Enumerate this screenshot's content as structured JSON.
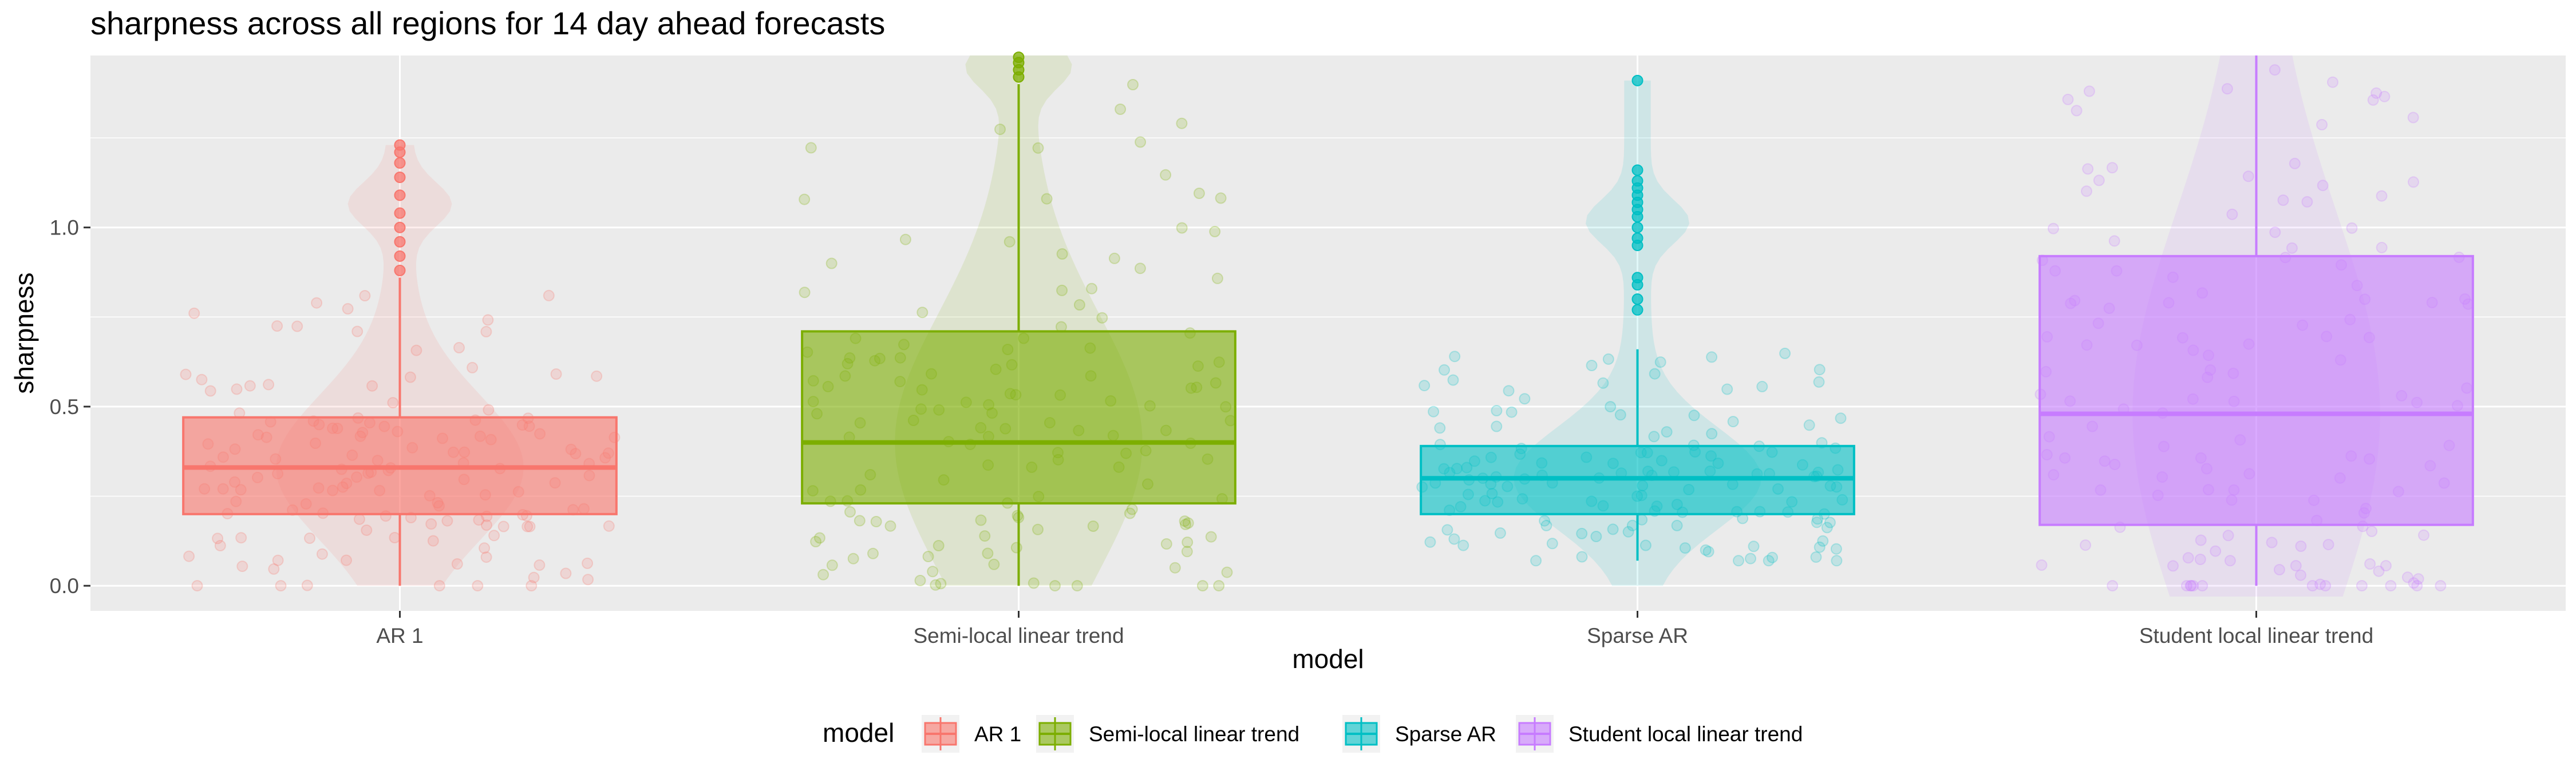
{
  "chart_data": {
    "type": "box",
    "title": "sharpness across all regions for 14 day ahead forecasts",
    "xlabel": "model",
    "ylabel": "sharpness",
    "ylim": [
      -0.07,
      1.48
    ],
    "yticks": [
      0.0,
      0.5,
      1.0
    ],
    "ytick_labels": [
      "0.0",
      "0.5",
      "1.0"
    ],
    "grid": true,
    "legend_position": "bottom",
    "legend_title": "model",
    "categories": [
      "AR 1",
      "Semi-local linear trend",
      "Sparse AR",
      "Student local linear trend"
    ],
    "series": [
      {
        "name": "AR 1",
        "color": "#F8766D",
        "q1": 0.2,
        "median": 0.33,
        "q3": 0.47,
        "whisker_low": 0.0,
        "whisker_high": 0.86,
        "outliers": [
          0.88,
          0.92,
          0.96,
          1.0,
          1.04,
          1.09,
          1.14,
          1.18,
          1.21,
          1.23
        ]
      },
      {
        "name": "Semi-local linear trend",
        "color": "#7CAE00",
        "q1": 0.23,
        "median": 0.4,
        "q3": 0.71,
        "whisker_low": 0.0,
        "whisker_high": 1.4,
        "outliers": [
          1.42,
          1.44,
          1.46,
          1.48
        ]
      },
      {
        "name": "Sparse AR",
        "color": "#00BFC4",
        "q1": 0.2,
        "median": 0.3,
        "q3": 0.39,
        "whisker_low": 0.07,
        "whisker_high": 0.66,
        "outliers": [
          0.77,
          0.8,
          0.84,
          0.86,
          0.95,
          0.97,
          1.0,
          1.03,
          1.05,
          1.07,
          1.09,
          1.11,
          1.13,
          1.16,
          1.41
        ]
      },
      {
        "name": "Student local linear trend",
        "color": "#C77CFF",
        "q1": 0.17,
        "median": 0.48,
        "q3": 0.92,
        "whisker_low": 0.0,
        "whisker_high": 1.48,
        "outliers": []
      }
    ]
  }
}
